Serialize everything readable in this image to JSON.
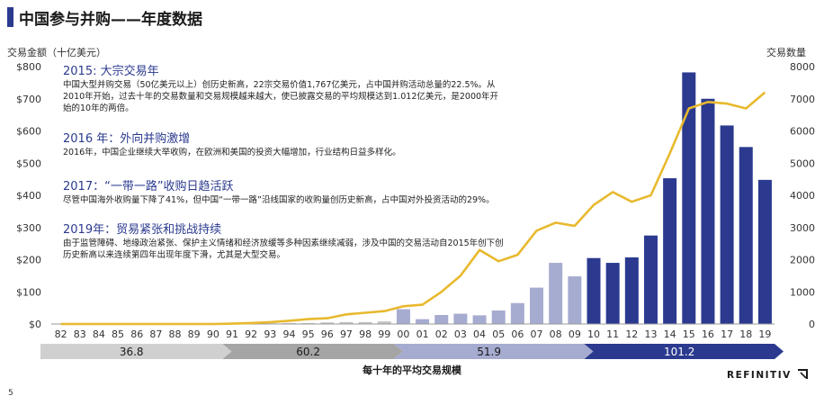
{
  "page": {
    "title": "中国参与并购——年度数据",
    "page_number": "5",
    "logo": "REFINITIV",
    "colors": {
      "accent": "#2b3a8f",
      "line": "#e8b92e"
    }
  },
  "annotations": [
    {
      "heading": "2015: 大宗交易年",
      "text": "中国大型并购交易（50亿美元以上）创历史新高，22宗交易价值1,767亿美元，占中国并购活动总量的22.5%。从2010年开始，过去十年的交易数量和交易规模越来越大，使已披露交易的平均规模达到1.012亿美元，是2000年开始的10年的两倍。"
    },
    {
      "heading": "2016 年：外向并购激增",
      "text": "2016年，中国企业继续大举收购，在欧洲和美国的投资大幅增加，行业结构日益多样化。"
    },
    {
      "heading": "2017：“一带一路”收购日趋活跃",
      "text": "尽管中国海外收购量下降了41%，但中国“一带一路”沿线国家的收购量创历史新高，占中国对外投资活动的29%。"
    },
    {
      "heading": "2019年：贸易紧张和挑战持续",
      "text": "由于监管障碍、地缘政治紧张、保护主义情绪和经济放缓等多种因素继续减弱，涉及中国的交易活动自2015年创下创历史新高以来连续第四年出现年度下滑，尤其是大型交易。"
    }
  ],
  "chart_data": {
    "type": "bar",
    "title": "",
    "ylabel": "交易金额（十亿美元）",
    "y2label": "交易数量",
    "xlabel": "每十年的平均交易规模",
    "categories": [
      "82",
      "83",
      "84",
      "85",
      "86",
      "87",
      "88",
      "89",
      "90",
      "91",
      "92",
      "93",
      "94",
      "95",
      "96",
      "97",
      "98",
      "99",
      "00",
      "01",
      "02",
      "03",
      "04",
      "05",
      "06",
      "07",
      "08",
      "09",
      "10",
      "11",
      "12",
      "13",
      "14",
      "15",
      "16",
      "17",
      "18",
      "19"
    ],
    "ylim": [
      0,
      800
    ],
    "y2lim": [
      0,
      8000
    ],
    "yticks": [
      "$0",
      "$100",
      "$200",
      "$300",
      "$400",
      "$500",
      "$600",
      "$700",
      "$800"
    ],
    "y2ticks": [
      "0",
      "1000",
      "2000",
      "3000",
      "4000",
      "5000",
      "6000",
      "7000",
      "8000"
    ],
    "series": [
      {
        "type": "bar",
        "axis": "left",
        "values": [
          0,
          0,
          0,
          0,
          0,
          0,
          0,
          0,
          0,
          0,
          1,
          2,
          3,
          3,
          5,
          6,
          6,
          8,
          46,
          15,
          28,
          32,
          27,
          42,
          65,
          113,
          190,
          148,
          205,
          190,
          207,
          275,
          453,
          782,
          700,
          617,
          550,
          448
        ]
      },
      {
        "type": "line",
        "axis": "right",
        "values": [
          0,
          0,
          0,
          0,
          0,
          0,
          0,
          0,
          0,
          10,
          30,
          60,
          100,
          150,
          180,
          300,
          350,
          400,
          550,
          600,
          1000,
          1500,
          2300,
          1950,
          2150,
          2900,
          3150,
          3050,
          3700,
          4100,
          3800,
          4000,
          5300,
          6700,
          6900,
          6850,
          6700,
          7200
        ]
      }
    ],
    "decades": [
      {
        "label": "36.8",
        "from": "82",
        "to": "90",
        "color": "#d0d0d0"
      },
      {
        "label": "60.2",
        "from": "91",
        "to": "99",
        "color": "#a5a5a5"
      },
      {
        "label": "51.9",
        "from": "00",
        "to": "09",
        "color": "#a6abd0"
      },
      {
        "label": "101.2",
        "from": "10",
        "to": "19",
        "color": "#2b3a8f"
      }
    ],
    "grid": false
  }
}
